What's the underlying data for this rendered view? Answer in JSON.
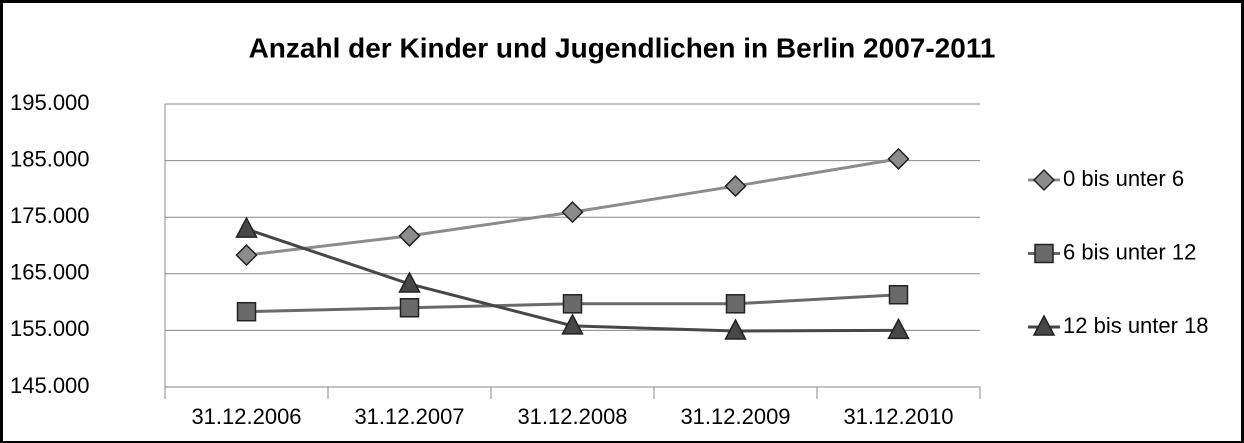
{
  "chart_data": {
    "type": "line",
    "title": "Anzahl der Kinder und Jugendlichen in Berlin 2007-2011",
    "categories": [
      "31.12.2006",
      "31.12.2007",
      "31.12.2008",
      "31.12.2009",
      "31.12.2010"
    ],
    "series": [
      {
        "name": "0 bis unter 6",
        "color": "#8c8c8c",
        "marker": "diamond",
        "values": [
          168300,
          171700,
          175900,
          180500,
          185300
        ]
      },
      {
        "name": "6 bis unter 12",
        "color": "#6a6a6a",
        "marker": "square",
        "values": [
          158300,
          159000,
          159700,
          159700,
          161300
        ]
      },
      {
        "name": "12 bis unter 18",
        "color": "#474747",
        "marker": "triangle",
        "values": [
          172900,
          163200,
          155800,
          154900,
          155000
        ]
      }
    ],
    "ylim": [
      145000,
      195000
    ],
    "yticks": [
      {
        "value": 145000,
        "label": "145.000"
      },
      {
        "value": 155000,
        "label": "155.000"
      },
      {
        "value": 165000,
        "label": "165.000"
      },
      {
        "value": 175000,
        "label": "175.000"
      },
      {
        "value": 185000,
        "label": "185.000"
      },
      {
        "value": 195000,
        "label": "195.000"
      }
    ],
    "grid": true,
    "legend": "right"
  }
}
